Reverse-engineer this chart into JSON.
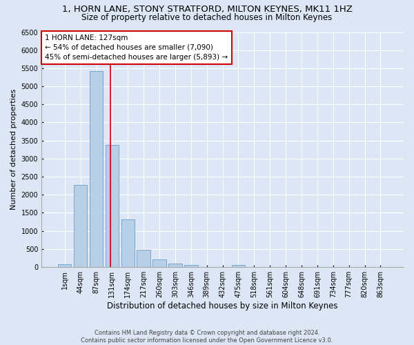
{
  "title1": "1, HORN LANE, STONY STRATFORD, MILTON KEYNES, MK11 1HZ",
  "title2": "Size of property relative to detached houses in Milton Keynes",
  "xlabel": "Distribution of detached houses by size in Milton Keynes",
  "ylabel": "Number of detached properties",
  "footnote1": "Contains HM Land Registry data © Crown copyright and database right 2024.",
  "footnote2": "Contains public sector information licensed under the Open Government Licence v3.0.",
  "bar_labels": [
    "1sqm",
    "44sqm",
    "87sqm",
    "131sqm",
    "174sqm",
    "217sqm",
    "260sqm",
    "303sqm",
    "346sqm",
    "389sqm",
    "432sqm",
    "475sqm",
    "518sqm",
    "561sqm",
    "604sqm",
    "648sqm",
    "691sqm",
    "734sqm",
    "777sqm",
    "820sqm",
    "863sqm"
  ],
  "bar_values": [
    70,
    2280,
    5430,
    3380,
    1310,
    475,
    215,
    100,
    55,
    0,
    0,
    60,
    0,
    0,
    0,
    0,
    0,
    0,
    0,
    0,
    0
  ],
  "bar_color": "#b8cfe8",
  "bar_edge_color": "#6a9cc8",
  "background_color": "#dce6f5",
  "grid_color": "#ffffff",
  "vline_color": "#cc0000",
  "annotation_text": "1 HORN LANE: 127sqm\n← 54% of detached houses are smaller (7,090)\n45% of semi-detached houses are larger (5,893) →",
  "annotation_box_color": "#ffffff",
  "annotation_box_edge": "#cc0000",
  "ylim": [
    0,
    6500
  ],
  "yticks": [
    0,
    500,
    1000,
    1500,
    2000,
    2500,
    3000,
    3500,
    4000,
    4500,
    5000,
    5500,
    6000,
    6500
  ],
  "title1_fontsize": 9.5,
  "title2_fontsize": 8.5,
  "xlabel_fontsize": 8.5,
  "ylabel_fontsize": 8,
  "tick_fontsize": 7,
  "annotation_fontsize": 7.5,
  "footnote_fontsize": 6
}
